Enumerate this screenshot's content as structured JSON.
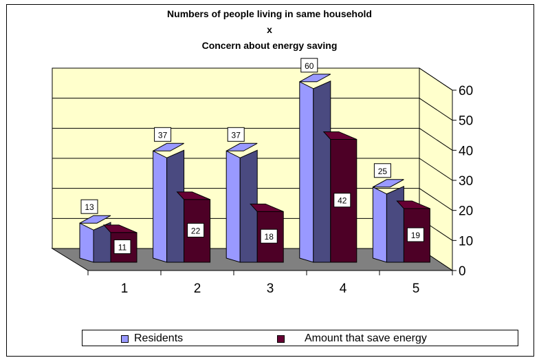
{
  "title": {
    "line1": "Numbers of people living in same household",
    "line2": "x",
    "line3": "Concern about energy saving"
  },
  "chart_data": {
    "type": "bar",
    "categories": [
      "1",
      "2",
      "3",
      "4",
      "5"
    ],
    "series": [
      {
        "name": "Residents",
        "values": [
          13,
          37,
          37,
          60,
          25
        ]
      },
      {
        "name": "Amount that save energy",
        "values": [
          11,
          22,
          18,
          42,
          19
        ]
      }
    ],
    "ylim": [
      0,
      60
    ],
    "yticks": [
      "0",
      "10",
      "20",
      "30",
      "40",
      "50",
      "60"
    ],
    "grid": true,
    "legend_position": "bottom",
    "colors": {
      "residents_front": "#9999ff",
      "residents_side": "#4a4a80",
      "energy_front": "#660033",
      "energy_side": "#4d0026",
      "back_wall": "#ffffcc",
      "floor": "#808080"
    }
  }
}
